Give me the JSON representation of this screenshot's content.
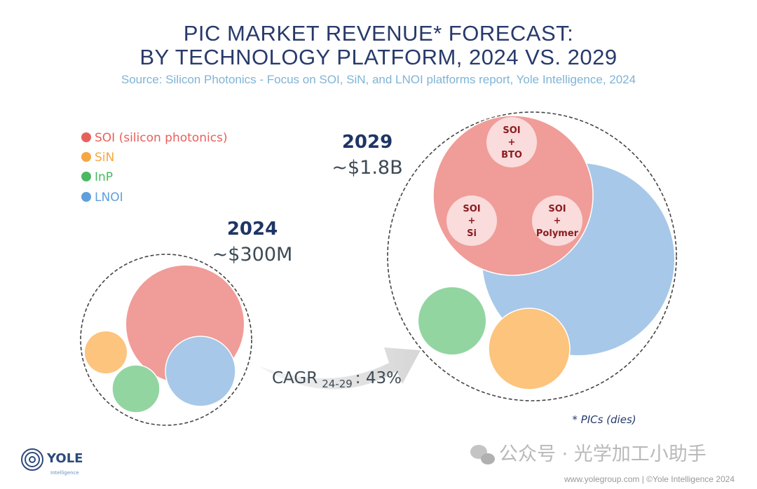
{
  "title": {
    "line1": "PIC MARKET REVENUE* FORECAST:",
    "line2": "BY TECHNOLOGY PLATFORM, 2024 VS. 2029",
    "source": "Source: Silicon Photonics  - Focus on SOI, SiN, and LNOI platforms  report, Yole Intelligence, 2024"
  },
  "legend": [
    {
      "label": "SOI (silicon photonics)",
      "color": "#e8605c"
    },
    {
      "label": "SiN",
      "color": "#f5a742"
    },
    {
      "label": "InP",
      "color": "#4cb862"
    },
    {
      "label": "LNOI",
      "color": "#5f9fdc"
    }
  ],
  "bubble_colors": {
    "SOI": "#f09c98",
    "SiN": "#fcc47c",
    "InP": "#92d5a1",
    "LNOI": "#a7c8e8"
  },
  "year_2024": {
    "year": "2024",
    "revenue": "~$300M"
  },
  "year_2029": {
    "year": "2029",
    "revenue": "~$1.8B",
    "soi_segments": [
      {
        "line1": "SOI",
        "line2": "+",
        "line3": "BTO"
      },
      {
        "line1": "SOI",
        "line2": "+",
        "line3": "Si"
      },
      {
        "line1": "SOI",
        "line2": "+",
        "line3": "Polymer"
      }
    ]
  },
  "cagr": {
    "label": "CAGR",
    "period": "24-29",
    "value": ": 43%"
  },
  "footnote": "* PICs (dies)",
  "footer": {
    "logo_text": "YOLE",
    "logo_sub": "Intelligence",
    "credit": "www.yolegroup.com | ©Yole Intelligence 2024",
    "watermark": "公众号 · 光学加工小助手"
  }
}
